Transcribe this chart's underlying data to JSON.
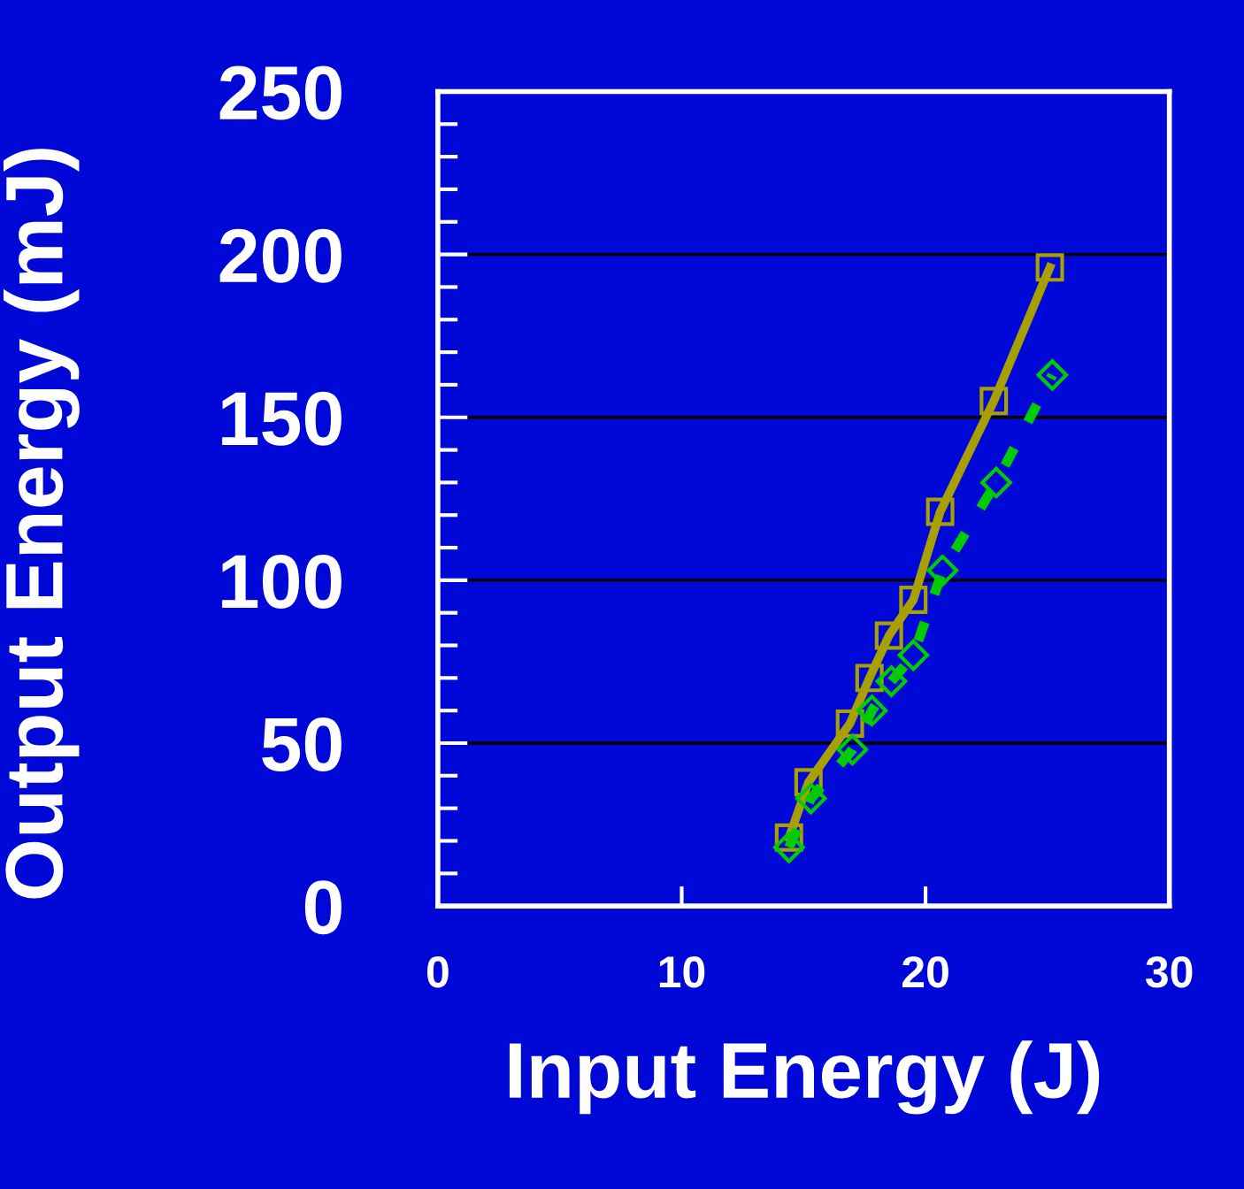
{
  "chart_data": {
    "type": "line",
    "xlabel": "Input Energy (J)",
    "ylabel": "Output Energy (mJ)",
    "xlim": [
      0,
      30
    ],
    "xticks": [
      0,
      10,
      20,
      30
    ],
    "ylim": [
      0,
      250
    ],
    "yticks": [
      0,
      50,
      100,
      150,
      200,
      250
    ],
    "grid": "y",
    "series": [
      {
        "color": "#a8a000",
        "marker": "square",
        "line_style": "solid",
        "x": [
          14.4,
          15.2,
          16.9,
          17.7,
          18.5,
          19.5,
          20.6,
          22.8,
          25.1
        ],
        "values": [
          21,
          38,
          56,
          70,
          83,
          94,
          121,
          155,
          196
        ]
      },
      {
        "color": "#00cc00",
        "marker": "diamond",
        "line_style": "dashed",
        "x": [
          14.4,
          15.3,
          17.0,
          17.8,
          18.6,
          19.5,
          20.7,
          22.9,
          25.2
        ],
        "values": [
          18,
          33,
          48,
          60,
          69,
          77,
          103,
          130,
          163
        ]
      }
    ]
  }
}
